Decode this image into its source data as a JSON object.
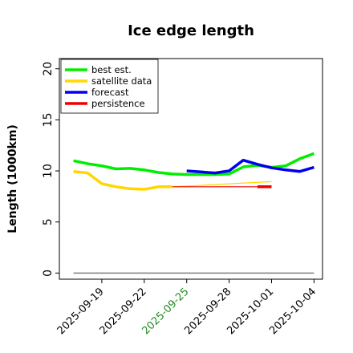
{
  "chart_data": {
    "type": "line",
    "title": "Ice edge length",
    "ylabel": "Length (1000km)",
    "xlabel": "",
    "ylim": [
      -0.6,
      21
    ],
    "xlim": [
      "2025-09-16",
      "2025-10-04.6"
    ],
    "y_ticks": [
      0,
      5,
      10,
      15,
      20
    ],
    "x_ticks": [
      "2025-09-19",
      "2025-09-22",
      "2025-09-25",
      "2025-09-28",
      "2025-10-01",
      "2025-10-04"
    ],
    "highlighted_x_tick": "2025-09-25",
    "highlight_color": "#228B22",
    "grid": false,
    "legend_position": "top-left",
    "series": [
      {
        "name": "best est.",
        "color": "#00EE00",
        "points": [
          [
            "2025-09-17",
            11.0
          ],
          [
            "2025-09-18",
            10.7
          ],
          [
            "2025-09-19",
            10.5
          ],
          [
            "2025-09-20",
            10.2
          ],
          [
            "2025-09-21",
            10.25
          ],
          [
            "2025-09-22",
            10.1
          ],
          [
            "2025-09-23",
            9.85
          ],
          [
            "2025-09-24",
            9.7
          ],
          [
            "2025-09-25",
            9.65
          ],
          [
            "2025-09-26",
            9.65
          ],
          [
            "2025-09-27",
            9.65
          ],
          [
            "2025-09-28",
            9.7
          ],
          [
            "2025-09-29",
            10.4
          ],
          [
            "2025-09-30",
            10.55
          ],
          [
            "2025-10-01",
            10.35
          ],
          [
            "2025-10-02",
            10.5
          ],
          [
            "2025-10-03",
            11.2
          ],
          [
            "2025-10-04",
            11.7
          ]
        ]
      },
      {
        "name": "satellite data",
        "color": "#FFD700",
        "points": [
          [
            "2025-09-17",
            9.95
          ],
          [
            "2025-09-18",
            9.8
          ],
          [
            "2025-09-19",
            8.75
          ],
          [
            "2025-09-20",
            8.45
          ],
          [
            "2025-09-21",
            8.25
          ],
          [
            "2025-09-22",
            8.2
          ],
          [
            "2025-09-23",
            8.45
          ],
          [
            "2025-09-24",
            8.45
          ]
        ],
        "trailing_points": [
          [
            "2025-09-24",
            8.45
          ],
          [
            "2025-10-01",
            8.95
          ]
        ]
      },
      {
        "name": "forecast",
        "color": "#0000EE",
        "points": [
          [
            "2025-09-25",
            10.0
          ],
          [
            "2025-09-26",
            9.9
          ],
          [
            "2025-09-27",
            9.8
          ],
          [
            "2025-09-28",
            10.0
          ],
          [
            "2025-09-29",
            11.05
          ],
          [
            "2025-09-30",
            10.65
          ],
          [
            "2025-10-01",
            10.3
          ],
          [
            "2025-10-02",
            10.1
          ],
          [
            "2025-10-03",
            9.95
          ],
          [
            "2025-10-04",
            10.35
          ]
        ]
      },
      {
        "name": "persistence",
        "color": "#EE0000",
        "points": [
          [
            "2025-09-24",
            8.45
          ],
          [
            "2025-10-01",
            8.45
          ]
        ],
        "thick_points": [
          [
            "2025-09-30",
            8.45
          ],
          [
            "2025-10-01",
            8.45
          ]
        ]
      }
    ],
    "baseline": {
      "color": "#808080",
      "points": [
        [
          "2025-09-17",
          0
        ],
        [
          "2025-10-04",
          0
        ]
      ]
    }
  }
}
